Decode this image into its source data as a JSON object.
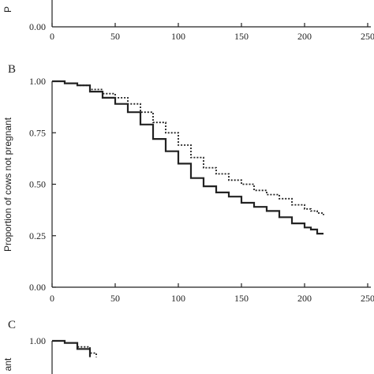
{
  "chart_data": [
    {
      "panel": "A",
      "type": "line",
      "visible": "partial",
      "ylabel_fragment": "P",
      "y_ticks": [
        "0.00"
      ],
      "x_ticks": [
        "0",
        "50",
        "100",
        "150",
        "200",
        "250"
      ],
      "xlim": [
        0,
        250
      ]
    },
    {
      "panel": "B",
      "type": "line",
      "ylabel": "Proportion of cows not pregnant",
      "xlim": [
        0,
        250
      ],
      "ylim": [
        0,
        1
      ],
      "y_ticks": [
        "0.00",
        "0.25",
        "0.50",
        "0.75",
        "1.00"
      ],
      "x_ticks": [
        "0",
        "50",
        "100",
        "150",
        "200",
        "250"
      ],
      "series": [
        {
          "style": "solid",
          "x": [
            0,
            10,
            20,
            30,
            40,
            50,
            60,
            70,
            80,
            90,
            100,
            110,
            120,
            130,
            140,
            150,
            160,
            170,
            180,
            190,
            200,
            205,
            210,
            215
          ],
          "y": [
            1.0,
            0.99,
            0.98,
            0.95,
            0.92,
            0.89,
            0.85,
            0.79,
            0.72,
            0.66,
            0.6,
            0.53,
            0.49,
            0.46,
            0.44,
            0.41,
            0.39,
            0.37,
            0.34,
            0.31,
            0.29,
            0.28,
            0.26,
            0.26
          ]
        },
        {
          "style": "dotted",
          "x": [
            0,
            10,
            20,
            30,
            40,
            50,
            60,
            70,
            80,
            90,
            100,
            110,
            120,
            130,
            140,
            150,
            160,
            170,
            180,
            190,
            200,
            205,
            210,
            215
          ],
          "y": [
            1.0,
            0.99,
            0.98,
            0.96,
            0.94,
            0.92,
            0.89,
            0.85,
            0.8,
            0.75,
            0.69,
            0.63,
            0.58,
            0.55,
            0.52,
            0.5,
            0.47,
            0.45,
            0.43,
            0.4,
            0.38,
            0.37,
            0.36,
            0.35
          ]
        }
      ]
    },
    {
      "panel": "C",
      "type": "line",
      "visible": "partial",
      "ylabel_fragment": "ant",
      "y_ticks": [
        "1.00"
      ],
      "xlim": [
        0,
        250
      ],
      "series": [
        {
          "style": "solid",
          "x": [
            0,
            10,
            20,
            30
          ],
          "y": [
            1.0,
            0.99,
            0.96,
            0.92
          ]
        },
        {
          "style": "dotted",
          "x": [
            0,
            10,
            20,
            30,
            35
          ],
          "y": [
            1.0,
            0.99,
            0.97,
            0.94,
            0.92
          ]
        }
      ]
    }
  ],
  "panels": {
    "a": {
      "ylabel_fragment": "P",
      "y0": "0.00"
    },
    "b": {
      "label": "B",
      "ylabel": "Proportion of cows not pregnant"
    },
    "c": {
      "label": "C",
      "ylabel_fragment": "ant",
      "y1": "1.00"
    }
  },
  "colors": {
    "line": "#222222",
    "background": "#ffffff"
  }
}
